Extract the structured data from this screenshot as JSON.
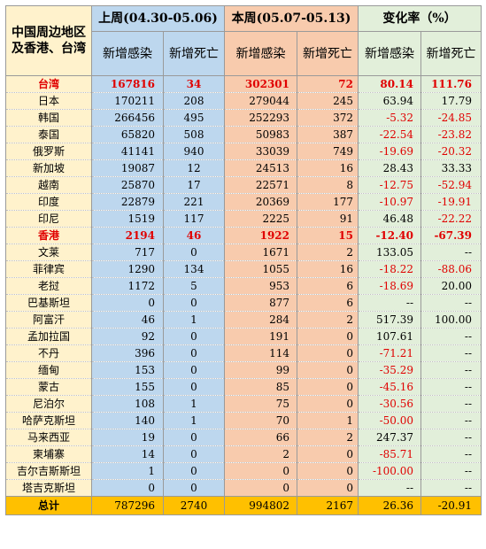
{
  "header": {
    "corner_label": "中国周边地区\n及香港、台湾",
    "last_week": "上周(04.30-05.06)",
    "this_week": "本周(05.07-05.13)",
    "change_rate": "变化率（%）",
    "sub_new_cases": "新增感染",
    "sub_new_deaths": "新增死亡"
  },
  "rows": [
    {
      "name": "台湾",
      "lw_cases": "167816",
      "lw_deaths": "34",
      "tw_cases": "302301",
      "tw_deaths": "72",
      "ch_cases": "80.14",
      "ch_deaths": "111.76",
      "highlight": true
    },
    {
      "name": "日本",
      "lw_cases": "170211",
      "lw_deaths": "208",
      "tw_cases": "279044",
      "tw_deaths": "245",
      "ch_cases": "63.94",
      "ch_deaths": "17.79"
    },
    {
      "name": "韩国",
      "lw_cases": "266456",
      "lw_deaths": "495",
      "tw_cases": "252293",
      "tw_deaths": "372",
      "ch_cases": "-5.32",
      "ch_deaths": "-24.85"
    },
    {
      "name": "泰国",
      "lw_cases": "65820",
      "lw_deaths": "508",
      "tw_cases": "50983",
      "tw_deaths": "387",
      "ch_cases": "-22.54",
      "ch_deaths": "-23.82"
    },
    {
      "name": "俄罗斯",
      "lw_cases": "41141",
      "lw_deaths": "940",
      "tw_cases": "33039",
      "tw_deaths": "749",
      "ch_cases": "-19.69",
      "ch_deaths": "-20.32"
    },
    {
      "name": "新加坡",
      "lw_cases": "19087",
      "lw_deaths": "12",
      "tw_cases": "24513",
      "tw_deaths": "16",
      "ch_cases": "28.43",
      "ch_deaths": "33.33"
    },
    {
      "name": "越南",
      "lw_cases": "25870",
      "lw_deaths": "17",
      "tw_cases": "22571",
      "tw_deaths": "8",
      "ch_cases": "-12.75",
      "ch_deaths": "-52.94"
    },
    {
      "name": "印度",
      "lw_cases": "22879",
      "lw_deaths": "221",
      "tw_cases": "20369",
      "tw_deaths": "177",
      "ch_cases": "-10.97",
      "ch_deaths": "-19.91"
    },
    {
      "name": "印尼",
      "lw_cases": "1519",
      "lw_deaths": "117",
      "tw_cases": "2225",
      "tw_deaths": "91",
      "ch_cases": "46.48",
      "ch_deaths": "-22.22"
    },
    {
      "name": "香港",
      "lw_cases": "2194",
      "lw_deaths": "46",
      "tw_cases": "1922",
      "tw_deaths": "15",
      "ch_cases": "-12.40",
      "ch_deaths": "-67.39",
      "highlight": true
    },
    {
      "name": "文莱",
      "lw_cases": "717",
      "lw_deaths": "0",
      "tw_cases": "1671",
      "tw_deaths": "2",
      "ch_cases": "133.05",
      "ch_deaths": "--"
    },
    {
      "name": "菲律宾",
      "lw_cases": "1290",
      "lw_deaths": "134",
      "tw_cases": "1055",
      "tw_deaths": "16",
      "ch_cases": "-18.22",
      "ch_deaths": "-88.06"
    },
    {
      "name": "老挝",
      "lw_cases": "1172",
      "lw_deaths": "5",
      "tw_cases": "953",
      "tw_deaths": "6",
      "ch_cases": "-18.69",
      "ch_deaths": "20.00"
    },
    {
      "name": "巴基斯坦",
      "lw_cases": "0",
      "lw_deaths": "0",
      "tw_cases": "877",
      "tw_deaths": "6",
      "ch_cases": "--",
      "ch_deaths": "--"
    },
    {
      "name": "阿富汗",
      "lw_cases": "46",
      "lw_deaths": "1",
      "tw_cases": "284",
      "tw_deaths": "2",
      "ch_cases": "517.39",
      "ch_deaths": "100.00"
    },
    {
      "name": "孟加拉国",
      "lw_cases": "92",
      "lw_deaths": "0",
      "tw_cases": "191",
      "tw_deaths": "0",
      "ch_cases": "107.61",
      "ch_deaths": "--"
    },
    {
      "name": "不丹",
      "lw_cases": "396",
      "lw_deaths": "0",
      "tw_cases": "114",
      "tw_deaths": "0",
      "ch_cases": "-71.21",
      "ch_deaths": "--"
    },
    {
      "name": "缅甸",
      "lw_cases": "153",
      "lw_deaths": "0",
      "tw_cases": "99",
      "tw_deaths": "0",
      "ch_cases": "-35.29",
      "ch_deaths": "--"
    },
    {
      "name": "蒙古",
      "lw_cases": "155",
      "lw_deaths": "0",
      "tw_cases": "85",
      "tw_deaths": "0",
      "ch_cases": "-45.16",
      "ch_deaths": "--"
    },
    {
      "name": "尼泊尔",
      "lw_cases": "108",
      "lw_deaths": "1",
      "tw_cases": "75",
      "tw_deaths": "0",
      "ch_cases": "-30.56",
      "ch_deaths": "--"
    },
    {
      "name": "哈萨克斯坦",
      "lw_cases": "140",
      "lw_deaths": "1",
      "tw_cases": "70",
      "tw_deaths": "1",
      "ch_cases": "-50.00",
      "ch_deaths": "--"
    },
    {
      "name": "马来西亚",
      "lw_cases": "19",
      "lw_deaths": "0",
      "tw_cases": "66",
      "tw_deaths": "2",
      "ch_cases": "247.37",
      "ch_deaths": "--"
    },
    {
      "name": "柬埔寨",
      "lw_cases": "14",
      "lw_deaths": "0",
      "tw_cases": "2",
      "tw_deaths": "0",
      "ch_cases": "-85.71",
      "ch_deaths": "--"
    },
    {
      "name": "吉尔吉斯斯坦",
      "lw_cases": "1",
      "lw_deaths": "0",
      "tw_cases": "0",
      "tw_deaths": "0",
      "ch_cases": "-100.00",
      "ch_deaths": "--"
    },
    {
      "name": "塔吉克斯坦",
      "lw_cases": "0",
      "lw_deaths": "0",
      "tw_cases": "0",
      "tw_deaths": "0",
      "ch_cases": "--",
      "ch_deaths": "--"
    }
  ],
  "total": {
    "name": "总计",
    "lw_cases": "787296",
    "lw_deaths": "2740",
    "tw_cases": "994802",
    "tw_deaths": "2167",
    "ch_cases": "26.36",
    "ch_deaths": "-20.91"
  },
  "colors": {
    "name_col": "#FFF2CC",
    "last_week": "#BDD7EE",
    "this_week": "#F8CBAD",
    "change": "#E2EFDA",
    "total_row": "#FFC000",
    "negative": "#E00000"
  }
}
